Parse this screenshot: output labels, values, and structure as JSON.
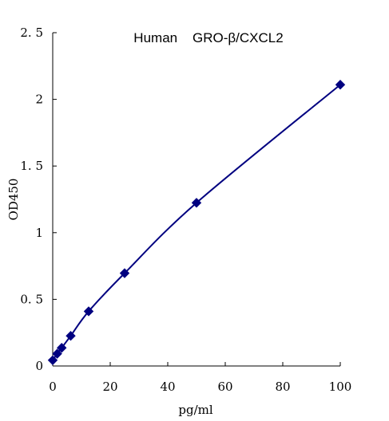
{
  "chart_data": {
    "type": "line",
    "title": "Human    GRO-β/CXCL2",
    "xlabel": "pg/ml",
    "ylabel": "OD450",
    "xlim": [
      0,
      100
    ],
    "ylim": [
      0,
      2.5
    ],
    "xticks": [
      0,
      20,
      40,
      60,
      80,
      100
    ],
    "xtick_labels": [
      "0",
      "20",
      "40",
      "60",
      "80",
      "100"
    ],
    "yticks": [
      0,
      0.5,
      1,
      1.5,
      2,
      2.5
    ],
    "ytick_labels": [
      "0",
      "0. 5",
      "1",
      "1. 5",
      "2",
      "2. 5"
    ],
    "grid": false,
    "legend": "none",
    "series": [
      {
        "color": "#000080",
        "marker": "diamond",
        "points": [
          {
            "x": 0,
            "y": 0.043
          },
          {
            "x": 1.56,
            "y": 0.092
          },
          {
            "x": 3.12,
            "y": 0.136
          },
          {
            "x": 6.25,
            "y": 0.226
          },
          {
            "x": 12.5,
            "y": 0.41
          },
          {
            "x": 25,
            "y": 0.696
          },
          {
            "x": 50,
            "y": 1.224
          },
          {
            "x": 100,
            "y": 2.11
          }
        ]
      }
    ]
  }
}
